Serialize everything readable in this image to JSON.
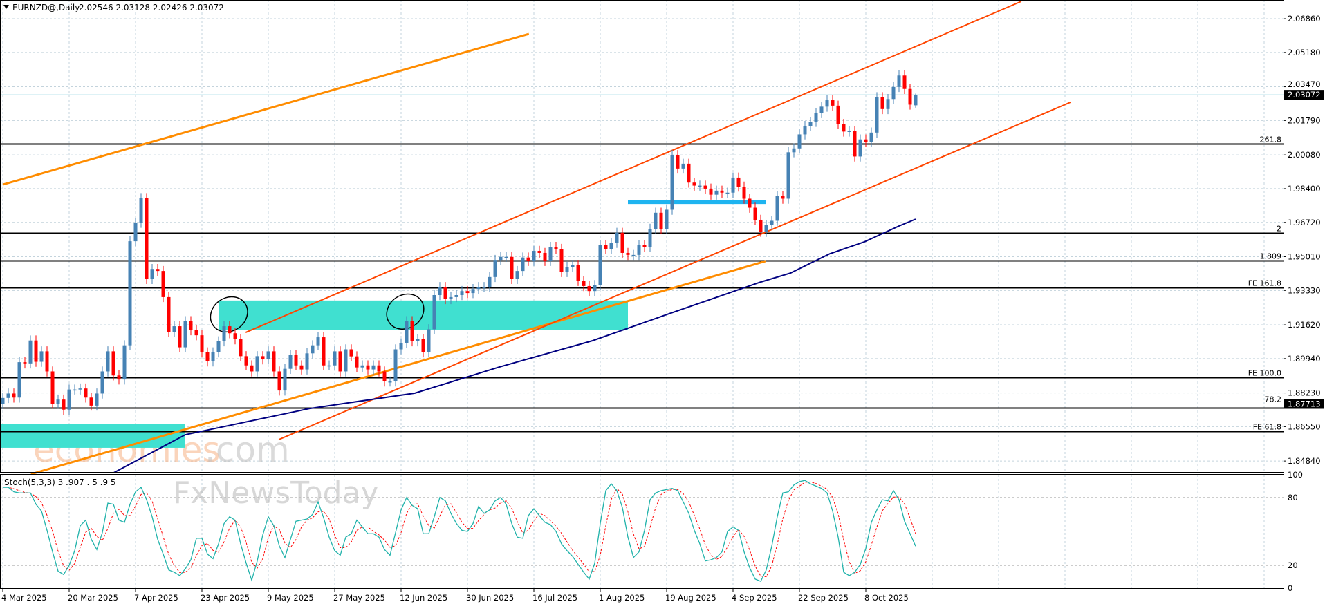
{
  "header": {
    "symbol_timeframe": "EURNZD@,Daily",
    "ohlc_text": "2.02546 2.03128 2.02426 2.03072",
    "menu_icon": "triangle-down-icon"
  },
  "watermark": {
    "brand1": "economies",
    "brand1_suffix": ".com",
    "brand2": "FxNewsToday"
  },
  "colors": {
    "bull": "#4682b4",
    "bear": "#ff0000",
    "grid": "#c3d3dc",
    "zone": "#40e0d0",
    "support_line": "#1eb4f0",
    "trend_orange": "#ff8c00",
    "channel": "#ff4500",
    "ma": "#000080",
    "stoch_main": "#20b2aa",
    "stoch_signal": "#ff0000",
    "bid_line": "#a8dbe8"
  },
  "chart_data": [
    {
      "type": "candlestick",
      "title": "EURNZD@,Daily",
      "grid": true,
      "y_ticks": [
        "2.06860",
        "2.05180",
        "2.03470",
        "2.01790",
        "2.00080",
        "1.98400",
        "1.96720",
        "1.95010",
        "1.93330",
        "1.91620",
        "1.89940",
        "1.88230",
        "1.86550",
        "1.84840"
      ],
      "ylim": [
        1.8429,
        2.0779
      ],
      "x_ticks": [
        {
          "bar": 0,
          "label": "4 Mar 2025"
        },
        {
          "bar": 12,
          "label": "20 Mar 2025"
        },
        {
          "bar": 24,
          "label": "7 Apr 2025"
        },
        {
          "bar": 36,
          "label": "23 Apr 2025"
        },
        {
          "bar": 48,
          "label": "9 May 2025"
        },
        {
          "bar": 60,
          "label": "27 May 2025"
        },
        {
          "bar": 72,
          "label": "12 Jun 2025"
        },
        {
          "bar": 84,
          "label": "30 Jun 2025"
        },
        {
          "bar": 96,
          "label": "16 Jul 2025"
        },
        {
          "bar": 108,
          "label": "1 Aug 2025"
        },
        {
          "bar": 120,
          "label": "19 Aug 2025"
        },
        {
          "bar": 132,
          "label": "4 Sep 2025"
        },
        {
          "bar": 144,
          "label": "22 Sep 2025"
        },
        {
          "bar": 156,
          "label": "8 Oct 2025"
        }
      ],
      "last_bar": {
        "open": 2.02546,
        "high": 2.03128,
        "low": 2.02426,
        "close": 2.03072
      },
      "current_price": "2.03072",
      "close": [
        1.8798,
        1.882,
        1.88,
        1.8976,
        1.897,
        1.9084,
        1.8978,
        1.903,
        1.893,
        1.877,
        1.879,
        1.874,
        1.884,
        1.884,
        1.8845,
        1.88,
        1.876,
        1.882,
        1.893,
        1.903,
        1.891,
        1.889,
        1.906,
        1.9578,
        1.967,
        1.9793,
        1.939,
        1.944,
        1.943,
        1.93,
        1.9127,
        1.9155,
        1.905,
        1.918,
        1.9135,
        1.911,
        1.9025,
        1.898,
        1.9025,
        1.908,
        1.9155,
        1.912,
        1.909,
        1.9006,
        1.896,
        1.893,
        1.9006,
        1.899,
        1.903,
        1.893,
        1.8835,
        1.8943,
        1.9012,
        1.896,
        1.894,
        1.902,
        1.906,
        1.91,
        1.896,
        1.896,
        1.903,
        1.893,
        1.904,
        1.9005,
        1.895,
        1.896,
        1.894,
        1.896,
        1.893,
        1.888,
        1.888,
        1.904,
        1.907,
        1.918,
        1.908,
        1.909,
        1.9025,
        1.914,
        1.931,
        1.935,
        1.929,
        1.93,
        1.931,
        1.933,
        1.932,
        1.934,
        1.935,
        1.935,
        1.94,
        1.9485,
        1.95,
        1.95,
        1.939,
        1.943,
        1.9497,
        1.948,
        1.953,
        1.952,
        1.948,
        1.955,
        1.954,
        1.9425,
        1.945,
        1.946,
        1.938,
        1.9355,
        1.933,
        1.936,
        1.956,
        1.954,
        1.957,
        1.962,
        1.952,
        1.951,
        1.951,
        1.956,
        1.955,
        1.964,
        1.972,
        1.964,
        1.9735,
        2.0007,
        1.994,
        1.9964,
        1.987,
        1.9855,
        1.9855,
        1.984,
        1.981,
        1.983,
        1.982,
        1.982,
        1.9895,
        1.985,
        1.979,
        1.9745,
        1.9685,
        1.9625,
        1.966,
        1.968,
        1.9802,
        1.979,
        2.0021,
        2.004,
        2.011,
        2.0152,
        2.0172,
        2.0216,
        2.0248,
        2.028,
        2.0253,
        2.0162,
        2.0124,
        2.0127,
        2.0,
        2.0085,
        2.0071,
        2.0119,
        2.0295,
        2.0236,
        2.0286,
        2.0346,
        2.0403,
        2.0336,
        2.0258,
        2.03072
      ],
      "levels": [
        {
          "price": 2.0063,
          "label": "261.8",
          "style": "solid"
        },
        {
          "price": 1.9621,
          "label": "2",
          "style": "solid"
        },
        {
          "price": 1.9482,
          "label": "1.809",
          "style": "solid"
        },
        {
          "price": 1.9347,
          "label": "FE 161.8",
          "style": "solid"
        },
        {
          "price": 1.8901,
          "label": "FE 100.0",
          "style": "solid"
        },
        {
          "price": 1.87713,
          "label": "78.2",
          "style": "dashed",
          "price_box": "1.87713"
        },
        {
          "price": 1.875,
          "label": "",
          "style": "solid"
        },
        {
          "price": 1.8631,
          "label": "FE 61.8",
          "style": "solid"
        }
      ],
      "zones": [
        {
          "from_bar": -0.5,
          "to_bar": 33,
          "low": 1.855,
          "high": 1.8667
        },
        {
          "from_bar": 39,
          "to_bar": 113,
          "low": 1.9138,
          "high": 1.9283
        }
      ],
      "support_segment": {
        "from_bar": 113,
        "to_bar": 138,
        "price": 1.9774
      },
      "trendlines": [
        {
          "kind": "orange",
          "from": [
            0,
            1.986
          ],
          "to": [
            95.1,
            2.061
          ]
        },
        {
          "kind": "orange",
          "from": [
            5.1,
            1.8419
          ],
          "to": [
            137.9,
            1.9479
          ]
        },
        {
          "kind": "channel",
          "from": [
            43.9,
            1.9124
          ],
          "to": [
            184.1,
            2.0772
          ]
        },
        {
          "kind": "channel",
          "from": [
            49.9,
            1.8591
          ],
          "to": [
            193,
            2.027
          ]
        }
      ],
      "ellipses": [
        {
          "center_bar": 40.9,
          "center_price": 1.9214
        },
        {
          "center_bar": 72.75,
          "center_price": 1.9228
        }
      ],
      "moving_average": [
        [
          17,
          1.84
        ],
        [
          20,
          1.8425
        ],
        [
          33,
          1.8615
        ],
        [
          55.6,
          1.8746
        ],
        [
          74.5,
          1.8822
        ],
        [
          89.75,
          1.8952
        ],
        [
          106.6,
          1.9083
        ],
        [
          120.4,
          1.9217
        ],
        [
          137,
          1.9375
        ],
        [
          142.4,
          1.942
        ],
        [
          149.5,
          1.9516
        ],
        [
          155.75,
          1.9575
        ],
        [
          162,
          1.9654
        ],
        [
          165,
          1.9688
        ]
      ]
    },
    {
      "type": "line",
      "title": "Stoch(5,3,3) 3 .907 . 5 .9 5",
      "ylim": [
        0,
        100
      ],
      "y_ticks": [
        "100",
        "80",
        "20",
        "0"
      ],
      "levels": [
        80,
        20
      ],
      "series": [
        {
          "role": "main",
          "values": [
            89,
            89,
            85,
            84,
            84,
            84,
            74,
            68,
            51,
            32,
            15,
            12,
            20,
            33,
            55,
            60,
            43,
            34,
            49,
            75,
            74,
            60,
            58,
            74,
            85,
            89,
            78,
            63,
            43,
            30,
            16,
            14,
            11,
            17,
            25,
            44,
            44,
            30,
            26,
            39,
            57,
            63,
            60,
            39,
            22,
            7,
            24,
            47,
            63,
            55,
            37,
            27,
            43,
            59,
            60,
            61,
            65,
            76,
            62,
            45,
            33,
            29,
            45,
            48,
            60,
            54,
            48,
            48,
            45,
            34,
            29,
            49,
            69,
            80,
            73,
            70,
            48,
            48,
            63,
            80,
            77,
            66,
            57,
            51,
            50,
            57,
            72,
            66,
            69,
            77,
            80,
            74,
            57,
            45,
            44,
            64,
            70,
            64,
            58,
            56,
            50,
            39,
            33,
            28,
            21,
            14,
            8,
            22,
            57,
            86,
            92,
            86,
            71,
            45,
            27,
            32,
            51,
            78,
            84,
            86,
            87,
            88,
            86,
            76,
            66,
            51,
            39,
            24,
            25,
            27,
            32,
            50,
            54,
            51,
            32,
            18,
            8,
            6,
            16,
            37,
            63,
            84,
            85,
            91,
            94,
            95,
            92,
            90,
            88,
            84,
            68,
            45,
            14,
            11,
            14,
            21,
            35,
            58,
            69,
            78,
            77,
            86,
            78,
            59,
            48,
            37
          ]
        },
        {
          "role": "signal",
          "method": "sma3 of main"
        }
      ]
    }
  ]
}
